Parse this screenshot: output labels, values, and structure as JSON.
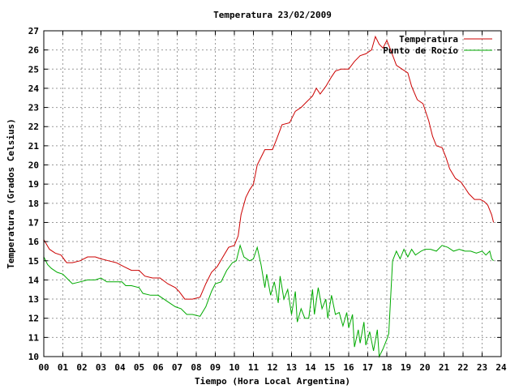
{
  "chart_data": {
    "type": "line",
    "title": "Temperatura 23/02/2009",
    "xlabel": "Tiempo (Hora Local Argentina)",
    "ylabel": "Temperatura (Grados Celsius)",
    "xlim": [
      0,
      24
    ],
    "ylim": [
      10,
      27
    ],
    "x_ticks": [
      "00",
      "01",
      "02",
      "03",
      "04",
      "05",
      "06",
      "07",
      "08",
      "09",
      "10",
      "11",
      "12",
      "13",
      "14",
      "15",
      "16",
      "17",
      "18",
      "19",
      "20",
      "21",
      "22",
      "23",
      "24"
    ],
    "y_ticks": [
      "10",
      "11",
      "12",
      "13",
      "14",
      "15",
      "16",
      "17",
      "18",
      "19",
      "20",
      "21",
      "22",
      "23",
      "24",
      "25",
      "26",
      "27"
    ],
    "grid": true,
    "legend_position": "top-right",
    "series": [
      {
        "name": "Temperatura",
        "color": "#cc0000",
        "points": [
          [
            0,
            16.1
          ],
          [
            0.3,
            15.6
          ],
          [
            0.6,
            15.4
          ],
          [
            0.9,
            15.3
          ],
          [
            1.2,
            14.9
          ],
          [
            1.5,
            14.9
          ],
          [
            1.9,
            15.0
          ],
          [
            2.3,
            15.2
          ],
          [
            2.7,
            15.2
          ],
          [
            3.0,
            15.1
          ],
          [
            3.4,
            15.0
          ],
          [
            3.8,
            14.9
          ],
          [
            4.2,
            14.7
          ],
          [
            4.6,
            14.5
          ],
          [
            5.0,
            14.5
          ],
          [
            5.3,
            14.2
          ],
          [
            5.7,
            14.1
          ],
          [
            6.1,
            14.1
          ],
          [
            6.5,
            13.8
          ],
          [
            6.9,
            13.6
          ],
          [
            7.1,
            13.4
          ],
          [
            7.4,
            13.0
          ],
          [
            7.8,
            13.0
          ],
          [
            8.2,
            13.1
          ],
          [
            8.5,
            13.8
          ],
          [
            8.8,
            14.4
          ],
          [
            9.1,
            14.7
          ],
          [
            9.4,
            15.2
          ],
          [
            9.7,
            15.7
          ],
          [
            10.0,
            15.8
          ],
          [
            10.2,
            16.3
          ],
          [
            10.35,
            17.4
          ],
          [
            10.6,
            18.3
          ],
          [
            10.8,
            18.7
          ],
          [
            11.0,
            19.0
          ],
          [
            11.2,
            20.0
          ],
          [
            11.4,
            20.4
          ],
          [
            11.6,
            20.8
          ],
          [
            12.0,
            20.8
          ],
          [
            12.2,
            21.3
          ],
          [
            12.5,
            22.1
          ],
          [
            12.9,
            22.2
          ],
          [
            13.2,
            22.8
          ],
          [
            13.5,
            23.0
          ],
          [
            13.8,
            23.3
          ],
          [
            14.1,
            23.6
          ],
          [
            14.3,
            24.0
          ],
          [
            14.5,
            23.7
          ],
          [
            14.8,
            24.1
          ],
          [
            15.1,
            24.6
          ],
          [
            15.3,
            24.9
          ],
          [
            15.6,
            25.0
          ],
          [
            16.0,
            25.0
          ],
          [
            16.3,
            25.4
          ],
          [
            16.6,
            25.7
          ],
          [
            16.9,
            25.8
          ],
          [
            17.2,
            26.0
          ],
          [
            17.4,
            26.7
          ],
          [
            17.6,
            26.3
          ],
          [
            17.8,
            26.1
          ],
          [
            18.0,
            26.5
          ],
          [
            18.2,
            26.0
          ],
          [
            18.5,
            25.2
          ],
          [
            18.8,
            25.0
          ],
          [
            19.1,
            24.8
          ],
          [
            19.3,
            24.1
          ],
          [
            19.6,
            23.4
          ],
          [
            19.9,
            23.2
          ],
          [
            20.2,
            22.3
          ],
          [
            20.4,
            21.5
          ],
          [
            20.6,
            21.0
          ],
          [
            20.9,
            20.9
          ],
          [
            21.1,
            20.4
          ],
          [
            21.3,
            19.8
          ],
          [
            21.6,
            19.3
          ],
          [
            21.9,
            19.1
          ],
          [
            22.1,
            18.8
          ],
          [
            22.3,
            18.5
          ],
          [
            22.6,
            18.2
          ],
          [
            22.9,
            18.2
          ],
          [
            23.1,
            18.1
          ],
          [
            23.3,
            17.9
          ],
          [
            23.5,
            17.4
          ],
          [
            23.6,
            17.0
          ]
        ]
      },
      {
        "name": "Punto de Rocío",
        "color": "#00aa00",
        "points": [
          [
            0,
            15.2
          ],
          [
            0.2,
            14.8
          ],
          [
            0.4,
            14.6
          ],
          [
            0.7,
            14.4
          ],
          [
            1.0,
            14.3
          ],
          [
            1.3,
            14.0
          ],
          [
            1.5,
            13.8
          ],
          [
            1.9,
            13.9
          ],
          [
            2.3,
            14.0
          ],
          [
            2.7,
            14.0
          ],
          [
            3.0,
            14.1
          ],
          [
            3.3,
            13.9
          ],
          [
            3.7,
            13.9
          ],
          [
            4.1,
            13.9
          ],
          [
            4.3,
            13.7
          ],
          [
            4.6,
            13.7
          ],
          [
            5.0,
            13.6
          ],
          [
            5.2,
            13.3
          ],
          [
            5.6,
            13.2
          ],
          [
            6.0,
            13.2
          ],
          [
            6.3,
            13.0
          ],
          [
            6.6,
            12.8
          ],
          [
            6.9,
            12.6
          ],
          [
            7.2,
            12.5
          ],
          [
            7.5,
            12.2
          ],
          [
            7.8,
            12.2
          ],
          [
            8.2,
            12.1
          ],
          [
            8.5,
            12.6
          ],
          [
            8.8,
            13.4
          ],
          [
            9.0,
            13.8
          ],
          [
            9.3,
            13.9
          ],
          [
            9.6,
            14.5
          ],
          [
            9.9,
            14.9
          ],
          [
            10.1,
            15.0
          ],
          [
            10.3,
            15.8
          ],
          [
            10.5,
            15.2
          ],
          [
            10.8,
            15.0
          ],
          [
            11.0,
            15.1
          ],
          [
            11.2,
            15.7
          ],
          [
            11.4,
            14.8
          ],
          [
            11.6,
            13.6
          ],
          [
            11.7,
            14.3
          ],
          [
            11.9,
            13.2
          ],
          [
            12.1,
            13.9
          ],
          [
            12.3,
            12.8
          ],
          [
            12.4,
            14.2
          ],
          [
            12.6,
            13.0
          ],
          [
            12.8,
            13.5
          ],
          [
            13.0,
            12.2
          ],
          [
            13.2,
            13.4
          ],
          [
            13.3,
            11.8
          ],
          [
            13.5,
            12.5
          ],
          [
            13.7,
            12.0
          ],
          [
            13.9,
            12.0
          ],
          [
            14.1,
            13.5
          ],
          [
            14.2,
            12.2
          ],
          [
            14.4,
            13.6
          ],
          [
            14.6,
            12.5
          ],
          [
            14.8,
            13.0
          ],
          [
            14.9,
            12.0
          ],
          [
            15.1,
            13.2
          ],
          [
            15.3,
            12.2
          ],
          [
            15.5,
            12.3
          ],
          [
            15.7,
            11.6
          ],
          [
            15.9,
            12.3
          ],
          [
            16.0,
            11.5
          ],
          [
            16.2,
            12.2
          ],
          [
            16.3,
            10.5
          ],
          [
            16.5,
            11.4
          ],
          [
            16.6,
            10.7
          ],
          [
            16.8,
            11.8
          ],
          [
            16.9,
            10.6
          ],
          [
            17.1,
            11.3
          ],
          [
            17.3,
            10.3
          ],
          [
            17.5,
            11.4
          ],
          [
            17.6,
            10.0
          ],
          [
            17.8,
            10.4
          ],
          [
            18.0,
            10.9
          ],
          [
            18.1,
            11.2
          ],
          [
            18.3,
            15.0
          ],
          [
            18.5,
            15.5
          ],
          [
            18.7,
            15.1
          ],
          [
            18.9,
            15.6
          ],
          [
            19.1,
            15.2
          ],
          [
            19.3,
            15.6
          ],
          [
            19.5,
            15.3
          ],
          [
            19.8,
            15.5
          ],
          [
            20.0,
            15.6
          ],
          [
            20.3,
            15.6
          ],
          [
            20.6,
            15.5
          ],
          [
            20.9,
            15.8
          ],
          [
            21.2,
            15.7
          ],
          [
            21.5,
            15.5
          ],
          [
            21.8,
            15.6
          ],
          [
            22.1,
            15.5
          ],
          [
            22.4,
            15.5
          ],
          [
            22.7,
            15.4
          ],
          [
            23.0,
            15.5
          ],
          [
            23.2,
            15.3
          ],
          [
            23.4,
            15.5
          ],
          [
            23.5,
            15.1
          ],
          [
            23.6,
            15.0
          ]
        ]
      }
    ]
  }
}
